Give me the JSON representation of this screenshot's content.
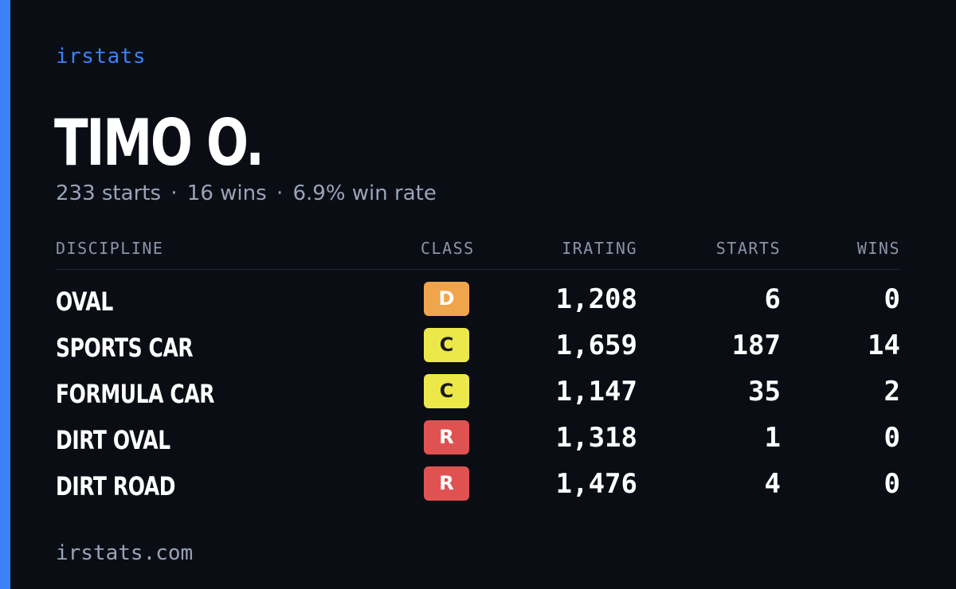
{
  "brand": "irstats",
  "driver": {
    "name": "TIMO O.",
    "starts_text": "233 starts",
    "wins_text": "16 wins",
    "winrate_text": "6.9% win rate",
    "separator": "·"
  },
  "table": {
    "headers": {
      "discipline": "DISCIPLINE",
      "class": "CLASS",
      "irating": "IRATING",
      "starts": "STARTS",
      "wins": "WINS"
    },
    "rows": [
      {
        "discipline": "OVAL",
        "class": "D",
        "class_color": "#f0a44b",
        "class_text_color": "#ffffff",
        "irating": "1,208",
        "starts": "6",
        "wins": "0"
      },
      {
        "discipline": "SPORTS CAR",
        "class": "C",
        "class_color": "#ece84a",
        "class_text_color": "#1a1a1a",
        "irating": "1,659",
        "starts": "187",
        "wins": "14"
      },
      {
        "discipline": "FORMULA CAR",
        "class": "C",
        "class_color": "#ece84a",
        "class_text_color": "#1a1a1a",
        "irating": "1,147",
        "starts": "35",
        "wins": "2"
      },
      {
        "discipline": "DIRT OVAL",
        "class": "R",
        "class_color": "#e05252",
        "class_text_color": "#ffffff",
        "irating": "1,318",
        "starts": "1",
        "wins": "0"
      },
      {
        "discipline": "DIRT ROAD",
        "class": "R",
        "class_color": "#e05252",
        "class_text_color": "#ffffff",
        "irating": "1,476",
        "starts": "4",
        "wins": "0"
      }
    ]
  },
  "footer": "irstats.com",
  "colors": {
    "accent": "#3b82f6",
    "background": "#0a0d14"
  }
}
